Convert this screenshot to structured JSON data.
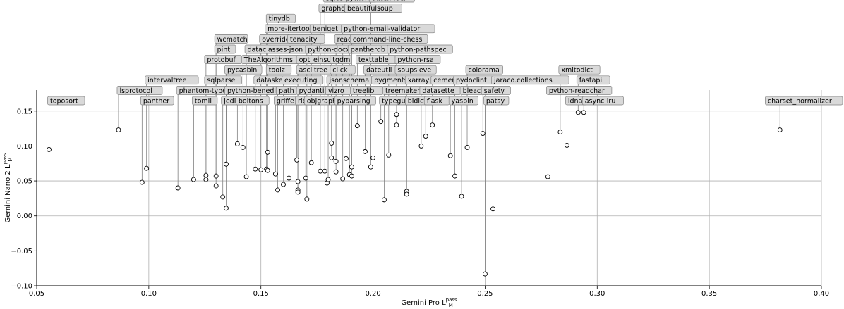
{
  "chart_data": {
    "type": "scatter",
    "title": "",
    "xlabel": "Gemini Pro L",
    "xlabel_sub": "M",
    "xlabel_sup": "pass",
    "ylabel": "Gemini Nano 2 L",
    "ylabel_sub": "M",
    "ylabel_sup": "pass",
    "xlim": [
      0.05,
      0.4
    ],
    "ylim": [
      -0.1,
      0.18
    ],
    "xticks": [
      0.05,
      0.1,
      0.15,
      0.2,
      0.25,
      0.3,
      0.35,
      0.4
    ],
    "xtick_labels": [
      "0.05",
      "0.10",
      "0.15",
      "0.20",
      "0.25",
      "0.30",
      "0.35",
      "0.40"
    ],
    "yticks": [
      -0.1,
      -0.05,
      0.0,
      0.05,
      0.1,
      0.15
    ],
    "ytick_labels": [
      "−0.10",
      "−0.05",
      "0.00",
      "0.05",
      "0.10",
      "0.15"
    ],
    "grid": true,
    "colors": {
      "point": "#000000",
      "line": "#808080",
      "label_bg": "#d9d9d9",
      "label_border": "#808080",
      "grid": "#b0b0b0"
    },
    "points": [
      {
        "name": "toposort",
        "x": 0.0555,
        "y": 0.095,
        "tier": 0
      },
      {
        "name": "lsprotocol",
        "x": 0.0865,
        "y": 0.123,
        "tier": 1
      },
      {
        "name": "intervaltree",
        "x": 0.099,
        "y": 0.068,
        "tier": 2
      },
      {
        "name": "panther",
        "x": 0.097,
        "y": 0.048,
        "tier": 0
      },
      {
        "name": "phantom-types",
        "x": 0.113,
        "y": 0.04,
        "tier": 1
      },
      {
        "name": "tomli",
        "x": 0.12,
        "y": 0.052,
        "tier": 0
      },
      {
        "name": "sqlparse",
        "x": 0.1255,
        "y": 0.058,
        "tier": 2
      },
      {
        "name": "protobuf",
        "x": 0.1255,
        "y": 0.052,
        "tier": 4
      },
      {
        "name": "pint",
        "x": 0.13,
        "y": 0.057,
        "tier": 5
      },
      {
        "name": "wcmatch",
        "x": 0.13,
        "y": 0.043,
        "tier": 6
      },
      {
        "name": "jedi",
        "x": 0.133,
        "y": 0.027,
        "tier": 0
      },
      {
        "name": "pycasbin",
        "x": 0.1345,
        "y": 0.074,
        "tier": 3
      },
      {
        "name": "python-benedict",
        "x": 0.1345,
        "y": 0.011,
        "tier": 1
      },
      {
        "name": "boltons",
        "x": 0.1395,
        "y": 0.103,
        "tier": 0
      },
      {
        "name": "TheAlgorithms",
        "x": 0.142,
        "y": 0.098,
        "tier": 4
      },
      {
        "name": "dataclasses-json",
        "x": 0.1435,
        "y": 0.056,
        "tier": 5
      },
      {
        "name": "datasketch",
        "x": 0.1475,
        "y": 0.067,
        "tier": 2
      },
      {
        "name": "overrides",
        "x": 0.15,
        "y": 0.066,
        "tier": 6
      },
      {
        "name": "more-itertools",
        "x": 0.1525,
        "y": 0.067,
        "tier": 7
      },
      {
        "name": "tinydb",
        "x": 0.153,
        "y": 0.091,
        "tier": 8
      },
      {
        "name": "toolz",
        "x": 0.153,
        "y": 0.065,
        "tier": 3
      },
      {
        "name": "griffe",
        "x": 0.1565,
        "y": 0.06,
        "tier": 0
      },
      {
        "name": "path",
        "x": 0.1575,
        "y": 0.037,
        "tier": 1
      },
      {
        "name": "executing",
        "x": 0.16,
        "y": 0.045,
        "tier": 2
      },
      {
        "name": "tenacity",
        "x": 0.1625,
        "y": 0.054,
        "tier": 6
      },
      {
        "name": "rich",
        "x": 0.166,
        "y": 0.08,
        "tier": 0
      },
      {
        "name": "pydantic",
        "x": 0.1665,
        "y": 0.049,
        "tier": 1
      },
      {
        "name": "opt_einsum",
        "x": 0.1665,
        "y": 0.037,
        "tier": 4
      },
      {
        "name": "asciitree",
        "x": 0.1665,
        "y": 0.034,
        "tier": 3
      },
      {
        "name": "objgraph",
        "x": 0.17,
        "y": 0.054,
        "tier": 0
      },
      {
        "name": "python-docx",
        "x": 0.1705,
        "y": 0.024,
        "tier": 5
      },
      {
        "name": "beniget",
        "x": 0.1725,
        "y": 0.076,
        "tier": 7
      },
      {
        "name": "graphql-core",
        "x": 0.1765,
        "y": 0.064,
        "tier": 9
      },
      {
        "name": "sqids-python",
        "x": 0.1785,
        "y": 0.064,
        "tier": 10
      },
      {
        "name": "vizro",
        "x": 0.1795,
        "y": 0.047,
        "tier": 1
      },
      {
        "name": "jsonschema",
        "x": 0.18,
        "y": 0.052,
        "tier": 2
      },
      {
        "name": "click",
        "x": 0.1815,
        "y": 0.083,
        "tier": 3
      },
      {
        "name": "tqdm",
        "x": 0.1815,
        "y": 0.104,
        "tier": 4
      },
      {
        "name": "reader",
        "x": 0.1835,
        "y": 0.078,
        "tier": 6
      },
      {
        "name": "pyparsing",
        "x": 0.1835,
        "y": 0.063,
        "tier": 0
      },
      {
        "name": "python-email-validator",
        "x": 0.1865,
        "y": 0.053,
        "tier": 7
      },
      {
        "name": "beautifulsoup",
        "x": 0.188,
        "y": 0.082,
        "tier": 9
      },
      {
        "name": "pantherdb",
        "x": 0.1895,
        "y": 0.059,
        "tier": 5
      },
      {
        "name": "command-line-chess",
        "x": 0.1905,
        "y": 0.057,
        "tier": 6
      },
      {
        "name": "treelib",
        "x": 0.1905,
        "y": 0.07,
        "tier": 1
      },
      {
        "name": "texttable",
        "x": 0.193,
        "y": 0.129,
        "tier": 4
      },
      {
        "name": "dateutil",
        "x": 0.1965,
        "y": 0.092,
        "tier": 3
      },
      {
        "name": "datefinder",
        "x": 0.199,
        "y": 0.07,
        "tier": 10
      },
      {
        "name": "pygments",
        "x": 0.2,
        "y": 0.083,
        "tier": 2
      },
      {
        "name": "typeguard",
        "x": 0.2035,
        "y": 0.135,
        "tier": 0
      },
      {
        "name": "treemaker",
        "x": 0.205,
        "y": 0.023,
        "tier": 1
      },
      {
        "name": "python-pathspec",
        "x": 0.207,
        "y": 0.087,
        "tier": 5
      },
      {
        "name": "python-rsa",
        "x": 0.2105,
        "y": 0.13,
        "tier": 4
      },
      {
        "name": "soupsieve",
        "x": 0.2105,
        "y": 0.145,
        "tier": 3
      },
      {
        "name": "bidict",
        "x": 0.215,
        "y": 0.035,
        "tier": 0
      },
      {
        "name": "xarray",
        "x": 0.215,
        "y": 0.031,
        "tier": 2
      },
      {
        "name": "datasette",
        "x": 0.2215,
        "y": 0.1,
        "tier": 1
      },
      {
        "name": "flask",
        "x": 0.2235,
        "y": 0.114,
        "tier": 0
      },
      {
        "name": "cement",
        "x": 0.2265,
        "y": 0.13,
        "tier": 2
      },
      {
        "name": "yaspin",
        "x": 0.2345,
        "y": 0.086,
        "tier": 0
      },
      {
        "name": "pydoclint",
        "x": 0.2365,
        "y": 0.057,
        "tier": 2
      },
      {
        "name": "bleach",
        "x": 0.2395,
        "y": 0.028,
        "tier": 1
      },
      {
        "name": "colorama",
        "x": 0.242,
        "y": 0.098,
        "tier": 3
      },
      {
        "name": "safety",
        "x": 0.249,
        "y": 0.118,
        "tier": 1
      },
      {
        "name": "patsy",
        "x": 0.25,
        "y": -0.083,
        "tier": 0
      },
      {
        "name": "jaraco.collections",
        "x": 0.2535,
        "y": 0.01,
        "tier": 2
      },
      {
        "name": "python-readchar",
        "x": 0.278,
        "y": 0.056,
        "tier": 1
      },
      {
        "name": "xmltodict",
        "x": 0.2835,
        "y": 0.12,
        "tier": 3
      },
      {
        "name": "idna",
        "x": 0.2865,
        "y": 0.101,
        "tier": 0
      },
      {
        "name": "fastapi",
        "x": 0.2915,
        "y": 0.148,
        "tier": 2
      },
      {
        "name": "async-lru",
        "x": 0.294,
        "y": 0.148,
        "tier": 0
      },
      {
        "name": "charset_normalizer",
        "x": 0.3815,
        "y": 0.123,
        "tier": 0
      }
    ]
  }
}
